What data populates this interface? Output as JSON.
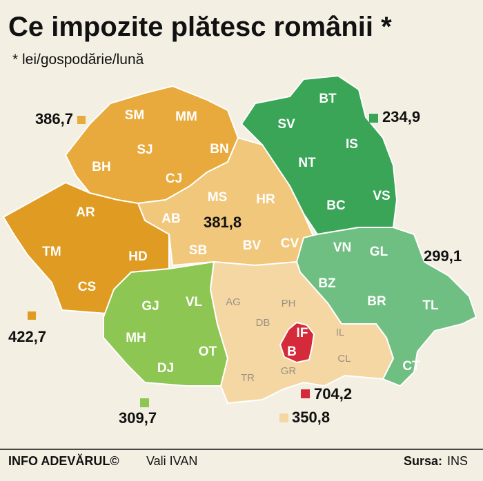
{
  "header": {
    "title": "Ce impozite plătesc românii *",
    "subtitle": "* lei/gospodărie/lună"
  },
  "regions": [
    {
      "value": "386,7",
      "color": "#e8aa3c",
      "counties": [
        "SM",
        "MM",
        "SJ",
        "BN",
        "BH",
        "CJ"
      ]
    },
    {
      "value": "381,8",
      "color": "#f1c77c",
      "counties": [
        "MS",
        "HR",
        "AB",
        "SB",
        "BV",
        "CV"
      ]
    },
    {
      "value": "234,9",
      "color": "#3aa557",
      "counties": [
        "BT",
        "SV",
        "IS",
        "NT",
        "BC",
        "VS"
      ]
    },
    {
      "value": "299,1",
      "color": "#6fbe82",
      "counties": [
        "VN",
        "GL",
        "BZ",
        "BR",
        "TL",
        "CT"
      ]
    },
    {
      "value": "422,7",
      "color": "#df9b22",
      "counties": [
        "AR",
        "TM",
        "HD",
        "CS"
      ]
    },
    {
      "value": "309,7",
      "color": "#8dc653",
      "counties": [
        "GJ",
        "VL",
        "MH",
        "OT",
        "DJ"
      ]
    },
    {
      "value": "350,8",
      "color": "#f5d7a4",
      "counties": [
        "AG",
        "PH",
        "DB",
        "IL",
        "CL",
        "TR",
        "GR"
      ]
    },
    {
      "value": "704,2",
      "color": "#d42a3a",
      "counties": [
        "IF",
        "B"
      ]
    }
  ],
  "footer": {
    "brand": "INFO ADEVĂRUL©",
    "author": "Vali IVAN",
    "source_label": "Sursa:",
    "source": "INS"
  }
}
